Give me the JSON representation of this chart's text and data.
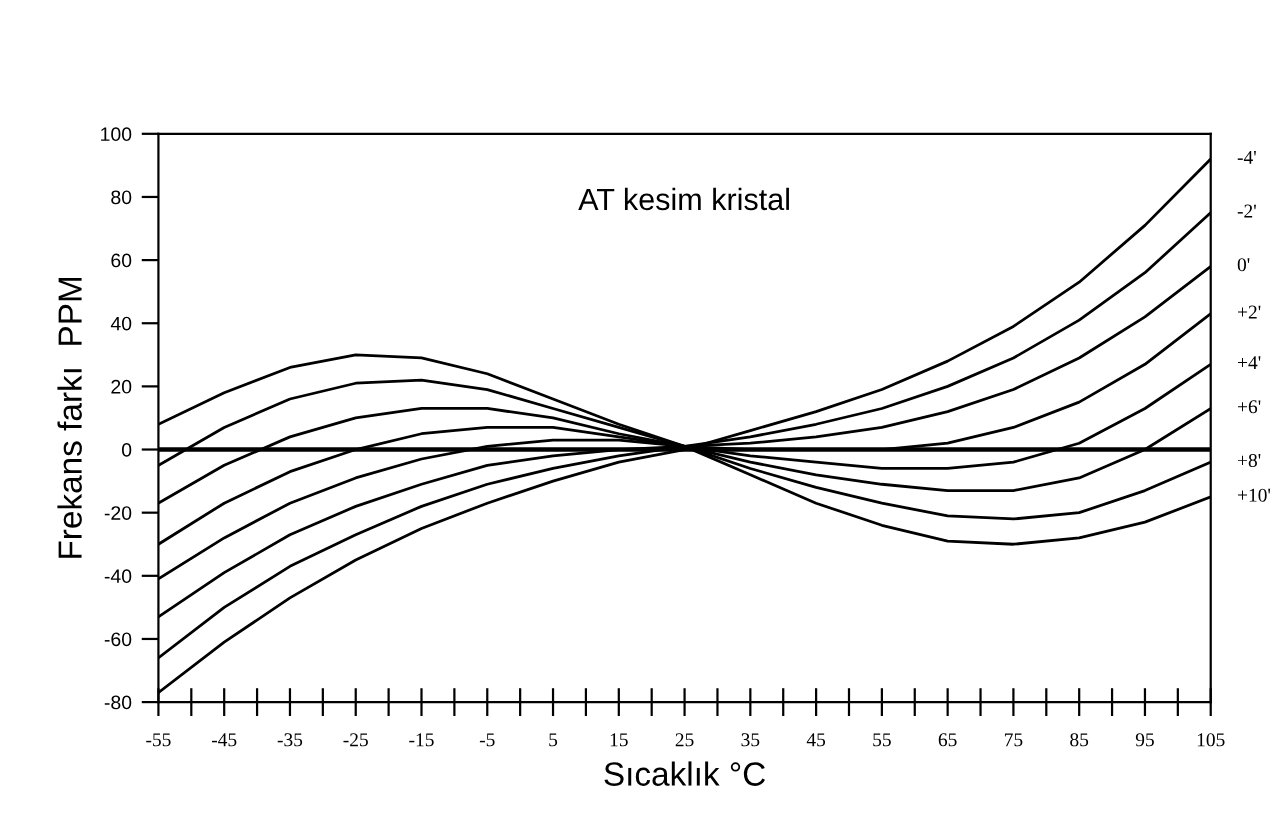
{
  "chart_data": {
    "type": "line",
    "title": "AT kesim kristal",
    "xlabel": "Sıcaklık °C",
    "ylabel": "Frekans farkı  PPM",
    "x": [
      -55,
      -45,
      -35,
      -25,
      -15,
      -5,
      5,
      15,
      25,
      35,
      45,
      55,
      65,
      75,
      85,
      95,
      105
    ],
    "series": [
      {
        "name": "-4'",
        "color": "#000000",
        "values": [
          -77,
          -61,
          -47,
          -35,
          -25,
          -17,
          -10,
          -4,
          0,
          6,
          12,
          19,
          28,
          39,
          53,
          71,
          92
        ]
      },
      {
        "name": "-2'",
        "color": "#000000",
        "values": [
          -66,
          -50,
          -37,
          -27,
          -18,
          -11,
          -6,
          -2,
          1,
          4,
          8,
          13,
          20,
          29,
          41,
          56,
          75
        ]
      },
      {
        "name": "0'",
        "color": "#000000",
        "values": [
          -53,
          -39,
          -27,
          -18,
          -11,
          -5,
          -2,
          0,
          1,
          2,
          4,
          7,
          12,
          19,
          29,
          42,
          58
        ]
      },
      {
        "name": "+2'",
        "color": "#000000",
        "values": [
          -41,
          -28,
          -17,
          -9,
          -3,
          1,
          3,
          3,
          1,
          0,
          0,
          0,
          2,
          7,
          15,
          27,
          43
        ]
      },
      {
        "name": "+4'",
        "color": "#000000",
        "values": [
          -30,
          -17,
          -7,
          0,
          5,
          7,
          7,
          4,
          1,
          -2,
          -4,
          -6,
          -6,
          -4,
          2,
          13,
          27
        ]
      },
      {
        "name": "+6'",
        "color": "#000000",
        "values": [
          -17,
          -5,
          4,
          10,
          13,
          13,
          10,
          5,
          1,
          -4,
          -8,
          -11,
          -13,
          -13,
          -9,
          0,
          13
        ]
      },
      {
        "name": "+8'",
        "color": "#000000",
        "values": [
          -5,
          7,
          16,
          21,
          22,
          19,
          13,
          7,
          1,
          -6,
          -12,
          -17,
          -21,
          -22,
          -20,
          -13,
          -4
        ]
      },
      {
        "name": "+10'",
        "color": "#000000",
        "values": [
          8,
          18,
          26,
          30,
          29,
          24,
          16,
          8,
          1,
          -8,
          -17,
          -24,
          -29,
          -30,
          -28,
          -23,
          -15
        ]
      }
    ],
    "xlim": [
      -55,
      105
    ],
    "xticks": [
      -55,
      {
        "value": -50,
        "label": null
      },
      -45,
      {
        "value": -40,
        "label": null
      },
      -35,
      {
        "value": -30,
        "label": null
      },
      -25,
      {
        "value": -20,
        "label": null
      },
      -15,
      {
        "value": -10,
        "label": null
      },
      -5,
      {
        "value": 0,
        "label": null
      },
      5,
      {
        "value": 10,
        "label": null
      },
      15,
      {
        "value": 20,
        "label": null
      },
      25,
      {
        "value": 30,
        "label": null
      },
      35,
      {
        "value": 40,
        "label": null
      },
      45,
      {
        "value": 50,
        "label": null
      },
      55,
      {
        "value": 60,
        "label": null
      },
      65,
      {
        "value": 70,
        "label": null
      },
      75,
      {
        "value": 80,
        "label": null
      },
      85,
      {
        "value": 90,
        "label": null
      },
      95,
      {
        "value": 100,
        "label": null
      },
      105
    ],
    "ylim": [
      -80,
      100
    ],
    "yticks": [
      -80,
      -60,
      -40,
      -20,
      0,
      20,
      40,
      60,
      80,
      100
    ],
    "ref_lines": [
      {
        "axis": "y",
        "value": 0,
        "color": "#000000"
      }
    ],
    "grid": false,
    "legend": false,
    "marker": "none",
    "line_style": "solid"
  }
}
